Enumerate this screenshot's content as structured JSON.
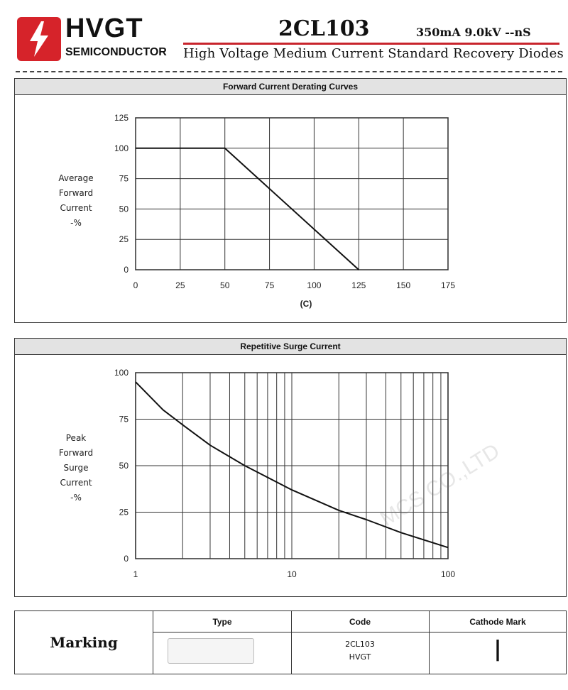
{
  "header": {
    "brand": "HVGT",
    "brand_sub": "SEMICONDUCTOR",
    "part_number": "2CL103",
    "rating": "350mA 9.0kV --nS",
    "subtitle": "High Voltage Medium Current Standard Recovery Diodes",
    "logo_colors": {
      "primary": "#d6232a",
      "bolt": "#ffffff"
    }
  },
  "chart_data": [
    {
      "type": "line",
      "title": "Forward Current Derating Curves",
      "ylabel": "Average Forward Current -%",
      "xlabel": "(C)",
      "x_ticks": [
        "0",
        "25",
        "50",
        "75",
        "100",
        "125",
        "150",
        "175"
      ],
      "y_ticks": [
        "0",
        "25",
        "50",
        "75",
        "100",
        "125"
      ],
      "xlim": [
        0,
        175
      ],
      "ylim": [
        0,
        125
      ],
      "grid": true,
      "series": [
        {
          "x": [
            0,
            50,
            125
          ],
          "y": [
            100,
            100,
            0
          ]
        }
      ]
    },
    {
      "type": "line",
      "title": "Repetitive Surge Current",
      "ylabel": "Peak Forward Surge Current -%",
      "xscale": "log",
      "x_ticks": [
        "1",
        "10",
        "100"
      ],
      "y_ticks": [
        "0",
        "25",
        "50",
        "75",
        "100"
      ],
      "xlim": [
        1,
        100
      ],
      "ylim": [
        0,
        100
      ],
      "grid": true,
      "series": [
        {
          "x": [
            1,
            1.5,
            2,
            3,
            5,
            10,
            20,
            30,
            50,
            100
          ],
          "y": [
            95,
            80,
            72,
            61,
            50,
            37,
            26,
            21,
            14,
            6
          ]
        }
      ]
    }
  ],
  "chart_labels": {
    "derating_y": [
      "Average",
      "Forward",
      "Current",
      "-%"
    ],
    "surge_y": [
      "Peak",
      "Forward",
      "Surge",
      "Current",
      "-%"
    ]
  },
  "marking": {
    "label": "Marking",
    "headers": [
      "Type",
      "Code",
      "Cathode Mark"
    ],
    "code_lines": [
      "2CL103",
      "HVGT"
    ],
    "cathode_mark": "|"
  },
  "watermark": "MCS CO.,LTD"
}
